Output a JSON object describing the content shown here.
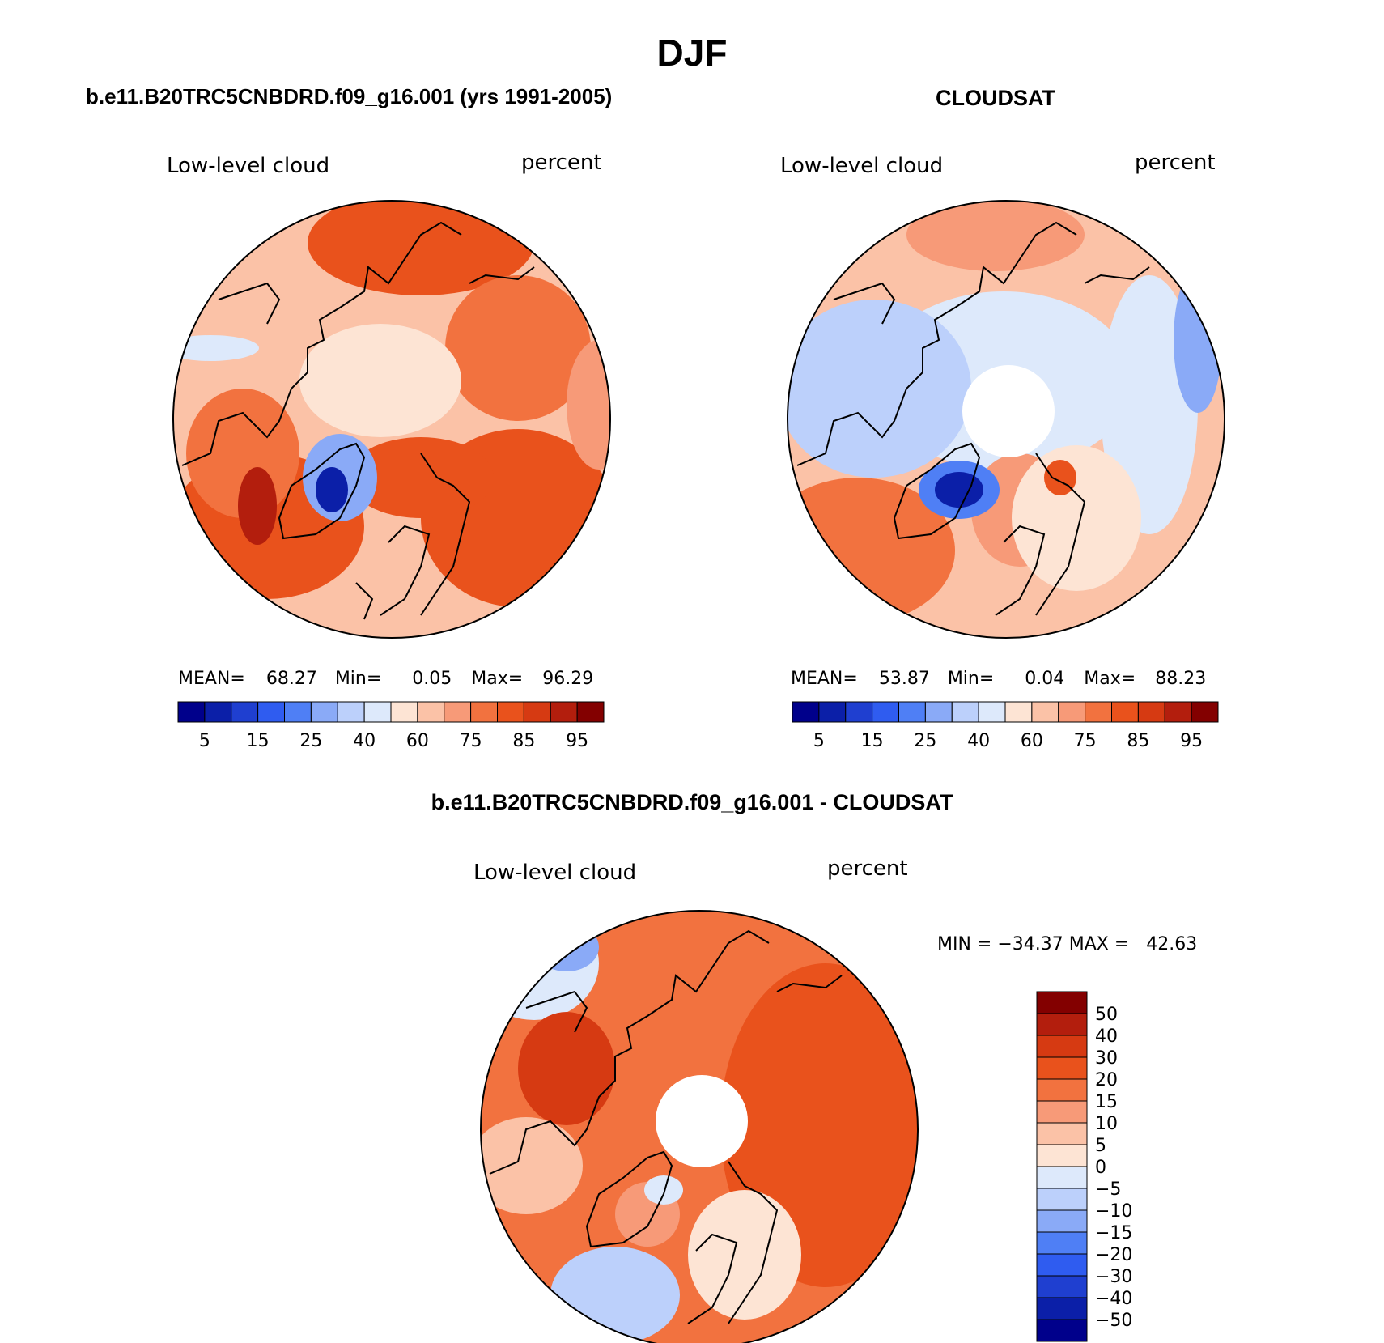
{
  "page_title": "DJF",
  "panels": [
    {
      "heading": "b.e11.B20TRC5CNBDRD.f09_g16.001 (yrs 1991-2005)",
      "left_label": "Low-level cloud",
      "right_label": "percent",
      "stats": {
        "mean_label": "MEAN=",
        "mean": "68.27",
        "min_label": "Min=",
        "min": "0.05",
        "max_label": "Max=",
        "max": "96.29"
      }
    },
    {
      "heading": "CLOUDSAT",
      "left_label": "Low-level cloud",
      "right_label": "percent",
      "stats": {
        "mean_label": "MEAN=",
        "mean": "53.87",
        "min_label": "Min=",
        "min": "0.04",
        "max_label": "Max=",
        "max": "88.23"
      }
    },
    {
      "heading": "b.e11.B20TRC5CNBDRD.f09_g16.001 - CLOUDSAT",
      "left_label": "Low-level cloud",
      "right_label": "percent",
      "stats": {
        "text": "MIN = −34.37 MAX =   42.63"
      }
    }
  ],
  "abs_colorbar": {
    "colors": [
      "#00008b",
      "#0b1fa8",
      "#1f3fd0",
      "#2f5cf0",
      "#4f7ff5",
      "#8aaaf7",
      "#bcd0fb",
      "#dde9fb",
      "#fde4d4",
      "#fbc2a7",
      "#f79a78",
      "#f2723f",
      "#e9521c",
      "#d63a12",
      "#b31e0d",
      "#830000"
    ],
    "tick_labels": [
      "5",
      "15",
      "25",
      "40",
      "60",
      "75",
      "85",
      "95"
    ]
  },
  "diff_colorbar": {
    "colors": [
      "#00008b",
      "#0b1fa8",
      "#1f3fd0",
      "#2f5cf0",
      "#4f7ff5",
      "#8aaaf7",
      "#bcd0fb",
      "#dde9fb",
      "#fde4d4",
      "#fbc2a7",
      "#f79a78",
      "#f2723f",
      "#e9521c",
      "#d63a12",
      "#b31e0d",
      "#830000"
    ],
    "tick_labels": [
      "50",
      "40",
      "30",
      "20",
      "15",
      "10",
      "5",
      "0",
      "−5",
      "−10",
      "−15",
      "−20",
      "−30",
      "−40",
      "−50"
    ]
  }
}
